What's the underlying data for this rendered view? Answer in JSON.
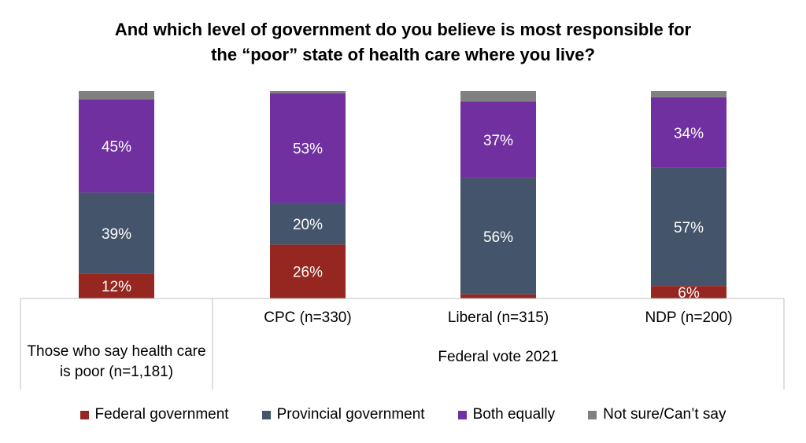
{
  "title_lines": [
    "And which level of government do you believe is most responsible for",
    "the “poor” state of health care where you live?"
  ],
  "colors": {
    "Federal government": "#962620",
    "Provincial government": "#44546A",
    "Both equally": "#7030A0",
    "Not sure/Can’t say": "#808080"
  },
  "chart_data": {
    "type": "bar",
    "stacked": true,
    "percent_stacked": true,
    "ylim": [
      0,
      100
    ],
    "grid": false,
    "legend_position": "bottom",
    "categories": [
      "Those who say health care is poor (n=1,181)",
      "CPC (n=330)",
      "Liberal (n=315)",
      "NDP (n=200)"
    ],
    "group_label": "Federal vote 2021",
    "series": [
      {
        "name": "Federal government",
        "values": [
          12,
          26,
          2,
          6
        ],
        "labels": [
          "12%",
          "26%",
          "",
          "6%"
        ]
      },
      {
        "name": "Provincial government",
        "values": [
          39,
          20,
          56,
          57
        ],
        "labels": [
          "39%",
          "20%",
          "56%",
          "57%"
        ]
      },
      {
        "name": "Both equally",
        "values": [
          45,
          53,
          37,
          34
        ],
        "labels": [
          "45%",
          "53%",
          "37%",
          "34%"
        ]
      },
      {
        "name": "Not sure/Can’t say",
        "values": [
          4,
          1,
          5,
          3
        ],
        "labels": [
          "",
          "",
          "",
          ""
        ]
      }
    ]
  },
  "axis": {
    "category_lines": [
      [
        "Those who say health care",
        "is poor (n=1,181)"
      ],
      [
        "CPC (n=330)"
      ],
      [
        "Liberal (n=315)"
      ],
      [
        "NDP (n=200)"
      ]
    ],
    "group_label": "Federal vote 2021"
  },
  "legend": [
    {
      "name": "Federal government",
      "color": "#962620"
    },
    {
      "name": "Provincial government",
      "color": "#44546A"
    },
    {
      "name": "Both equally",
      "color": "#7030A0"
    },
    {
      "name": "Not sure/Can’t say",
      "color": "#808080"
    }
  ]
}
